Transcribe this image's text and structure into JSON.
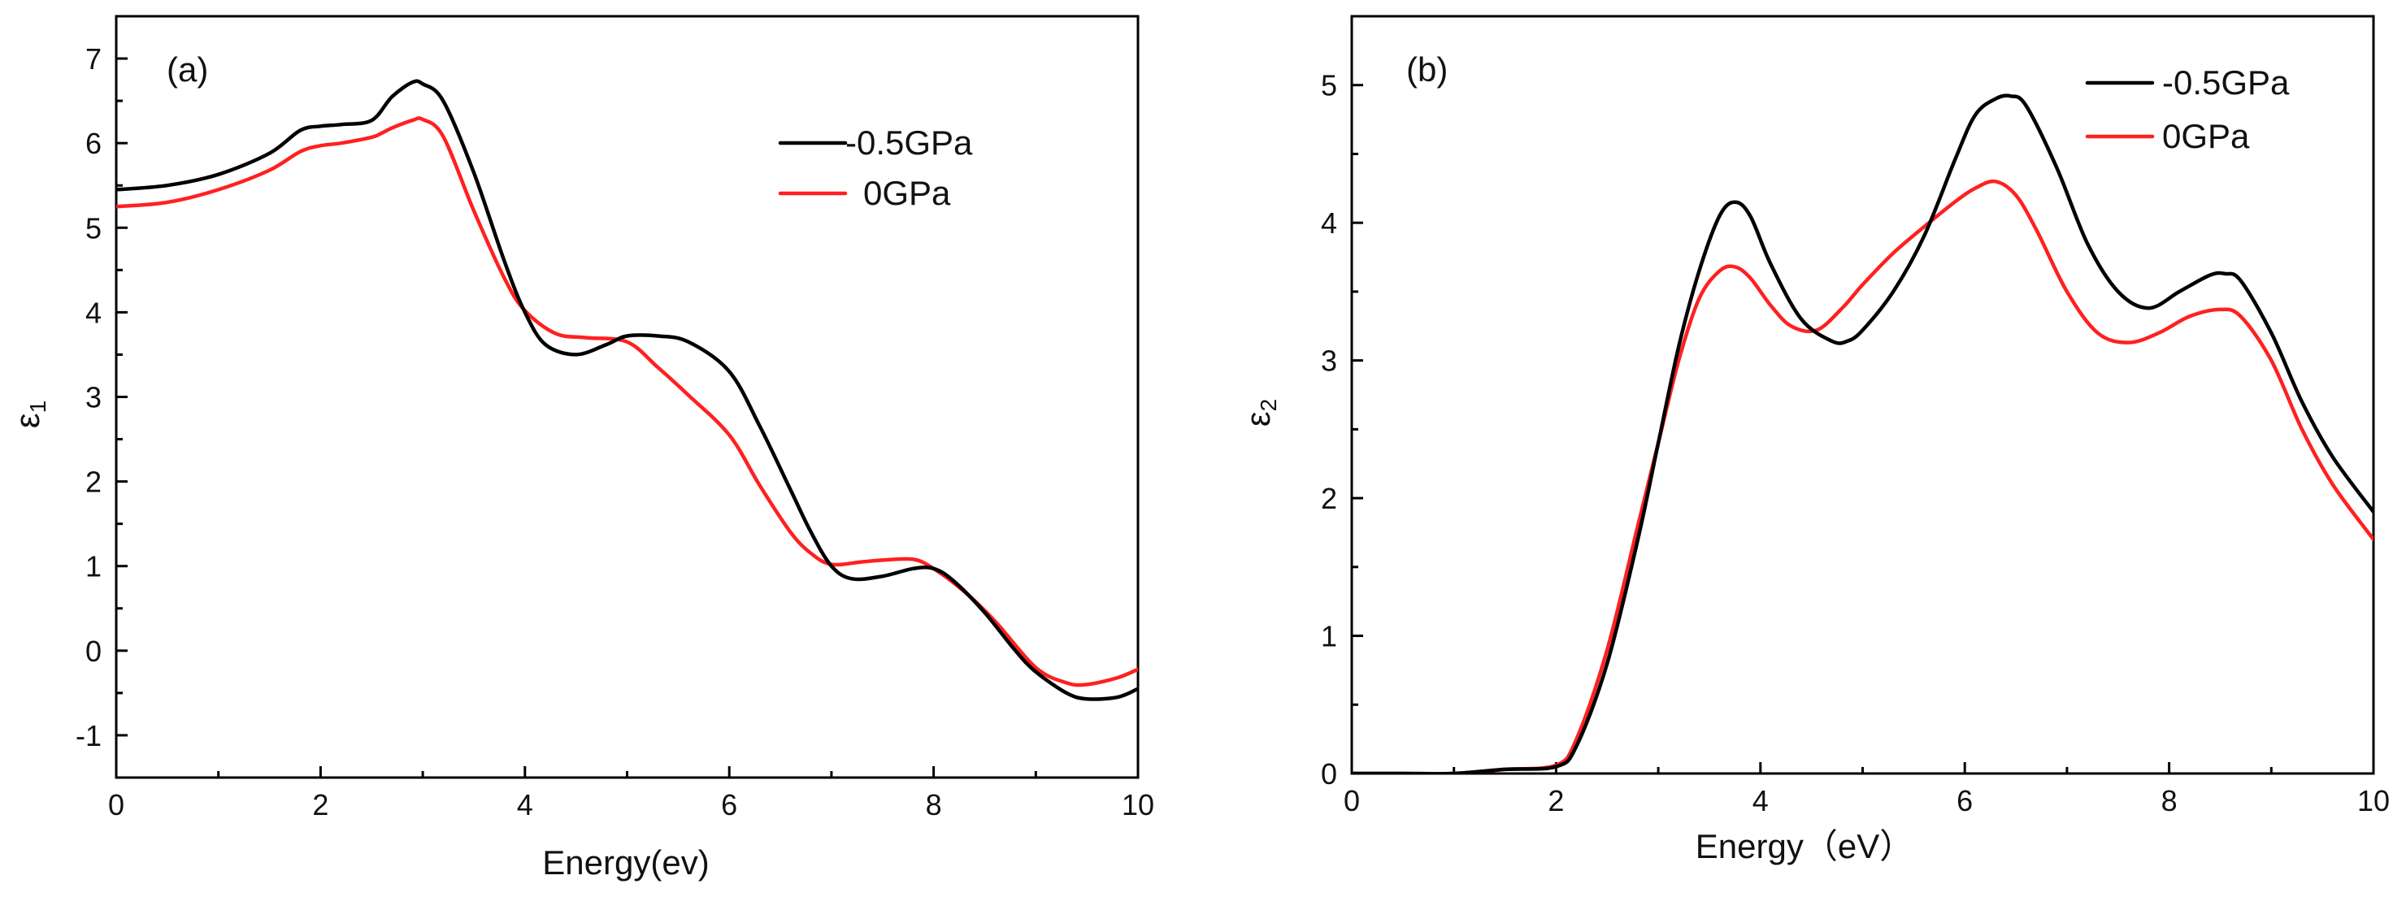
{
  "chart_data": [
    {
      "type": "line",
      "panel_label": "(a)",
      "xlabel": "Energy(ev)",
      "ylabel": "ε1",
      "ylabel_main": "ε",
      "ylabel_sub": "1",
      "xlim": [
        0,
        10
      ],
      "ylim": [
        -1.5,
        7.5
      ],
      "xticks": [
        "0",
        "2",
        "4",
        "6",
        "8",
        "10"
      ],
      "yticks": [
        "-1",
        "0",
        "1",
        "2",
        "3",
        "4",
        "5",
        "6",
        "7"
      ],
      "legend_position": "top-right",
      "series": [
        {
          "name": "-0.5GPa",
          "color": "#000000",
          "x": [
            0,
            0.5,
            1,
            1.5,
            1.8,
            2.0,
            2.2,
            2.5,
            2.7,
            2.9,
            3.0,
            3.2,
            3.5,
            3.8,
            4.0,
            4.2,
            4.5,
            4.8,
            5.0,
            5.3,
            5.6,
            6.0,
            6.3,
            6.6,
            6.8,
            7.0,
            7.2,
            7.5,
            7.8,
            8.0,
            8.2,
            8.5,
            8.8,
            9.0,
            9.3,
            9.5,
            9.8,
            10
          ],
          "y": [
            5.45,
            5.5,
            5.63,
            5.88,
            6.15,
            6.2,
            6.22,
            6.27,
            6.55,
            6.72,
            6.7,
            6.5,
            5.65,
            4.6,
            4.0,
            3.62,
            3.5,
            3.62,
            3.72,
            3.72,
            3.65,
            3.3,
            2.65,
            1.9,
            1.4,
            1.0,
            0.85,
            0.88,
            0.97,
            0.97,
            0.82,
            0.45,
            0.0,
            -0.25,
            -0.5,
            -0.57,
            -0.55,
            -0.45
          ]
        },
        {
          "name": "0GPa",
          "color": "#ff2020",
          "x": [
            0,
            0.5,
            1,
            1.5,
            1.8,
            2.0,
            2.2,
            2.5,
            2.6,
            2.7,
            2.9,
            3.0,
            3.2,
            3.5,
            3.8,
            4.0,
            4.3,
            4.6,
            5.0,
            5.3,
            5.6,
            6.0,
            6.3,
            6.6,
            6.8,
            7.0,
            7.3,
            7.5,
            7.8,
            8.0,
            8.3,
            8.6,
            9.0,
            9.3,
            9.5,
            9.8,
            10
          ],
          "y": [
            5.25,
            5.3,
            5.45,
            5.68,
            5.9,
            5.97,
            6.0,
            6.07,
            6.12,
            6.18,
            6.27,
            6.28,
            6.08,
            5.2,
            4.4,
            4.02,
            3.75,
            3.7,
            3.65,
            3.35,
            3.02,
            2.55,
            1.95,
            1.4,
            1.15,
            1.02,
            1.05,
            1.07,
            1.08,
            0.97,
            0.7,
            0.35,
            -0.2,
            -0.38,
            -0.4,
            -0.32,
            -0.22
          ]
        }
      ]
    },
    {
      "type": "line",
      "panel_label": "(b)",
      "xlabel": "Energy（eV）",
      "ylabel": "ε2",
      "ylabel_main": "ε",
      "ylabel_sub": "2",
      "xlim": [
        0,
        10
      ],
      "ylim": [
        0,
        5.5
      ],
      "xticks": [
        "0",
        "2",
        "4",
        "6",
        "8",
        "10"
      ],
      "yticks": [
        "0",
        "1",
        "2",
        "3",
        "4",
        "5"
      ],
      "legend_position": "top-right",
      "series": [
        {
          "name": "-0.5GPa",
          "color": "#000000",
          "x": [
            0,
            0.5,
            1.0,
            1.5,
            2.0,
            2.2,
            2.5,
            2.8,
            3.0,
            3.2,
            3.4,
            3.6,
            3.75,
            3.9,
            4.1,
            4.4,
            4.7,
            4.85,
            5.0,
            5.3,
            5.6,
            5.9,
            6.1,
            6.3,
            6.45,
            6.6,
            6.9,
            7.2,
            7.5,
            7.8,
            8.1,
            8.4,
            8.55,
            8.7,
            9.0,
            9.3,
            9.6,
            10
          ],
          "y": [
            0,
            0,
            0,
            0.03,
            0.05,
            0.2,
            0.8,
            1.7,
            2.4,
            3.1,
            3.65,
            4.05,
            4.15,
            4.05,
            3.7,
            3.3,
            3.14,
            3.14,
            3.22,
            3.5,
            3.9,
            4.45,
            4.78,
            4.9,
            4.92,
            4.85,
            4.4,
            3.85,
            3.5,
            3.38,
            3.5,
            3.62,
            3.63,
            3.58,
            3.2,
            2.7,
            2.3,
            1.9
          ]
        },
        {
          "name": "0GPa",
          "color": "#ff2020",
          "x": [
            0,
            0.5,
            1.0,
            1.5,
            2.0,
            2.2,
            2.5,
            2.8,
            3.0,
            3.2,
            3.4,
            3.6,
            3.75,
            3.9,
            4.1,
            4.3,
            4.55,
            4.8,
            5.0,
            5.3,
            5.6,
            5.9,
            6.1,
            6.3,
            6.5,
            6.7,
            7.0,
            7.3,
            7.6,
            7.9,
            8.2,
            8.5,
            8.7,
            9.0,
            9.3,
            9.6,
            10
          ],
          "y": [
            0,
            0,
            0,
            0.03,
            0.06,
            0.25,
            0.9,
            1.8,
            2.4,
            3.0,
            3.45,
            3.65,
            3.68,
            3.6,
            3.4,
            3.25,
            3.22,
            3.38,
            3.55,
            3.78,
            3.97,
            4.15,
            4.25,
            4.3,
            4.2,
            3.95,
            3.5,
            3.2,
            3.13,
            3.2,
            3.32,
            3.37,
            3.32,
            3.0,
            2.5,
            2.1,
            1.7
          ]
        }
      ]
    }
  ]
}
